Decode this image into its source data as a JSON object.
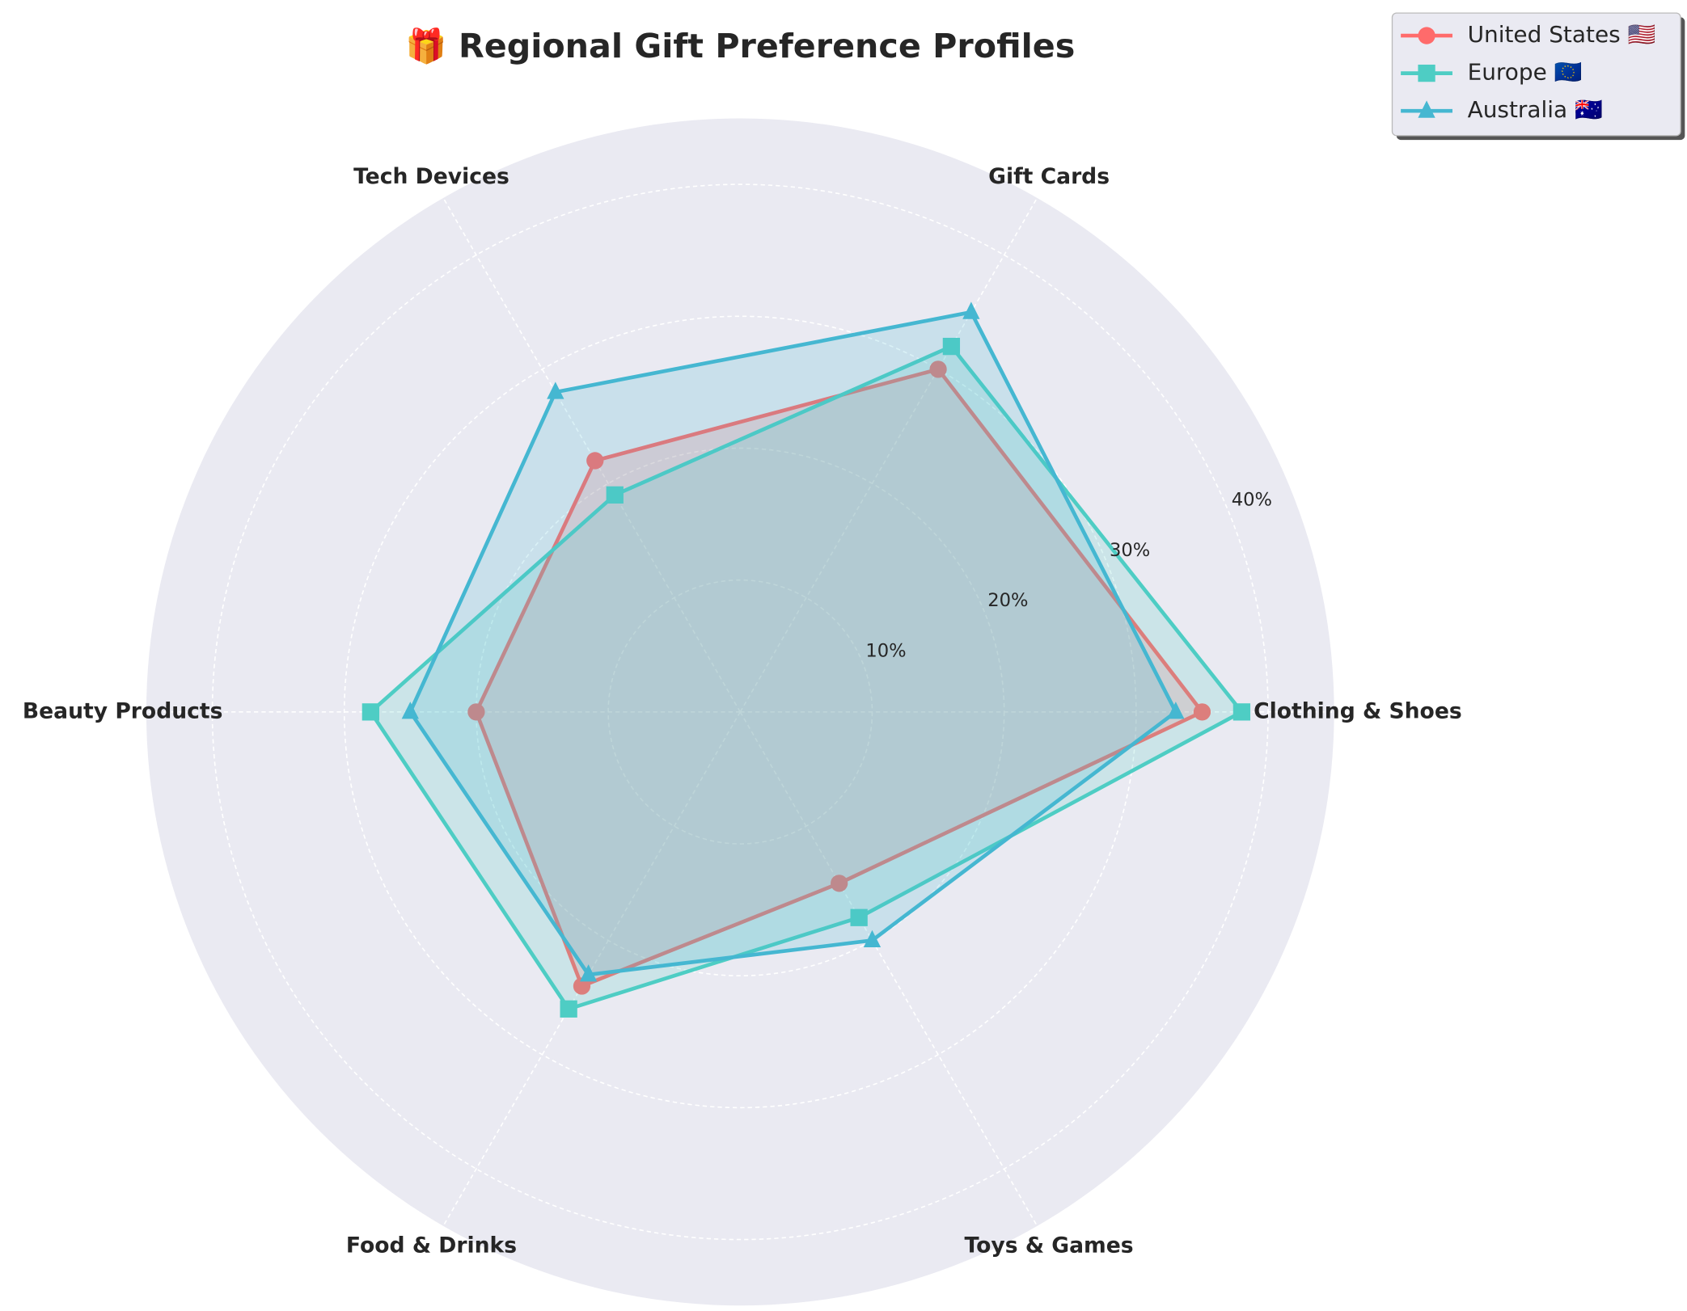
{
  "chart_data": {
    "type": "radar",
    "title": "🎁 Regional Gift Preference Profiles",
    "categories": [
      "Clothing & Shoes",
      "Gift Cards",
      "Tech Devices",
      "Beauty Products",
      "Food & Drinks",
      "Toys & Games"
    ],
    "series": [
      {
        "name": "United States 🇺🇸",
        "color": "#ff6b6b",
        "marker": "circle",
        "values": [
          35,
          30,
          22,
          20,
          24,
          15
        ]
      },
      {
        "name": "Europe 🇪🇺",
        "color": "#4ecdc4",
        "marker": "square",
        "values": [
          38,
          32,
          19,
          28,
          26,
          18
        ]
      },
      {
        "name": "Australia 🇦🇺",
        "color": "#45b7d1",
        "marker": "triangle",
        "values": [
          33,
          35,
          28,
          25,
          23,
          20
        ]
      }
    ],
    "ylim": [
      0,
      45
    ],
    "yticks": [
      {
        "value": 10,
        "label": "10%"
      },
      {
        "value": 20,
        "label": "20%"
      },
      {
        "value": 30,
        "label": "30%"
      },
      {
        "value": 40,
        "label": "40%"
      }
    ],
    "grid": true,
    "legend": "upper right"
  }
}
